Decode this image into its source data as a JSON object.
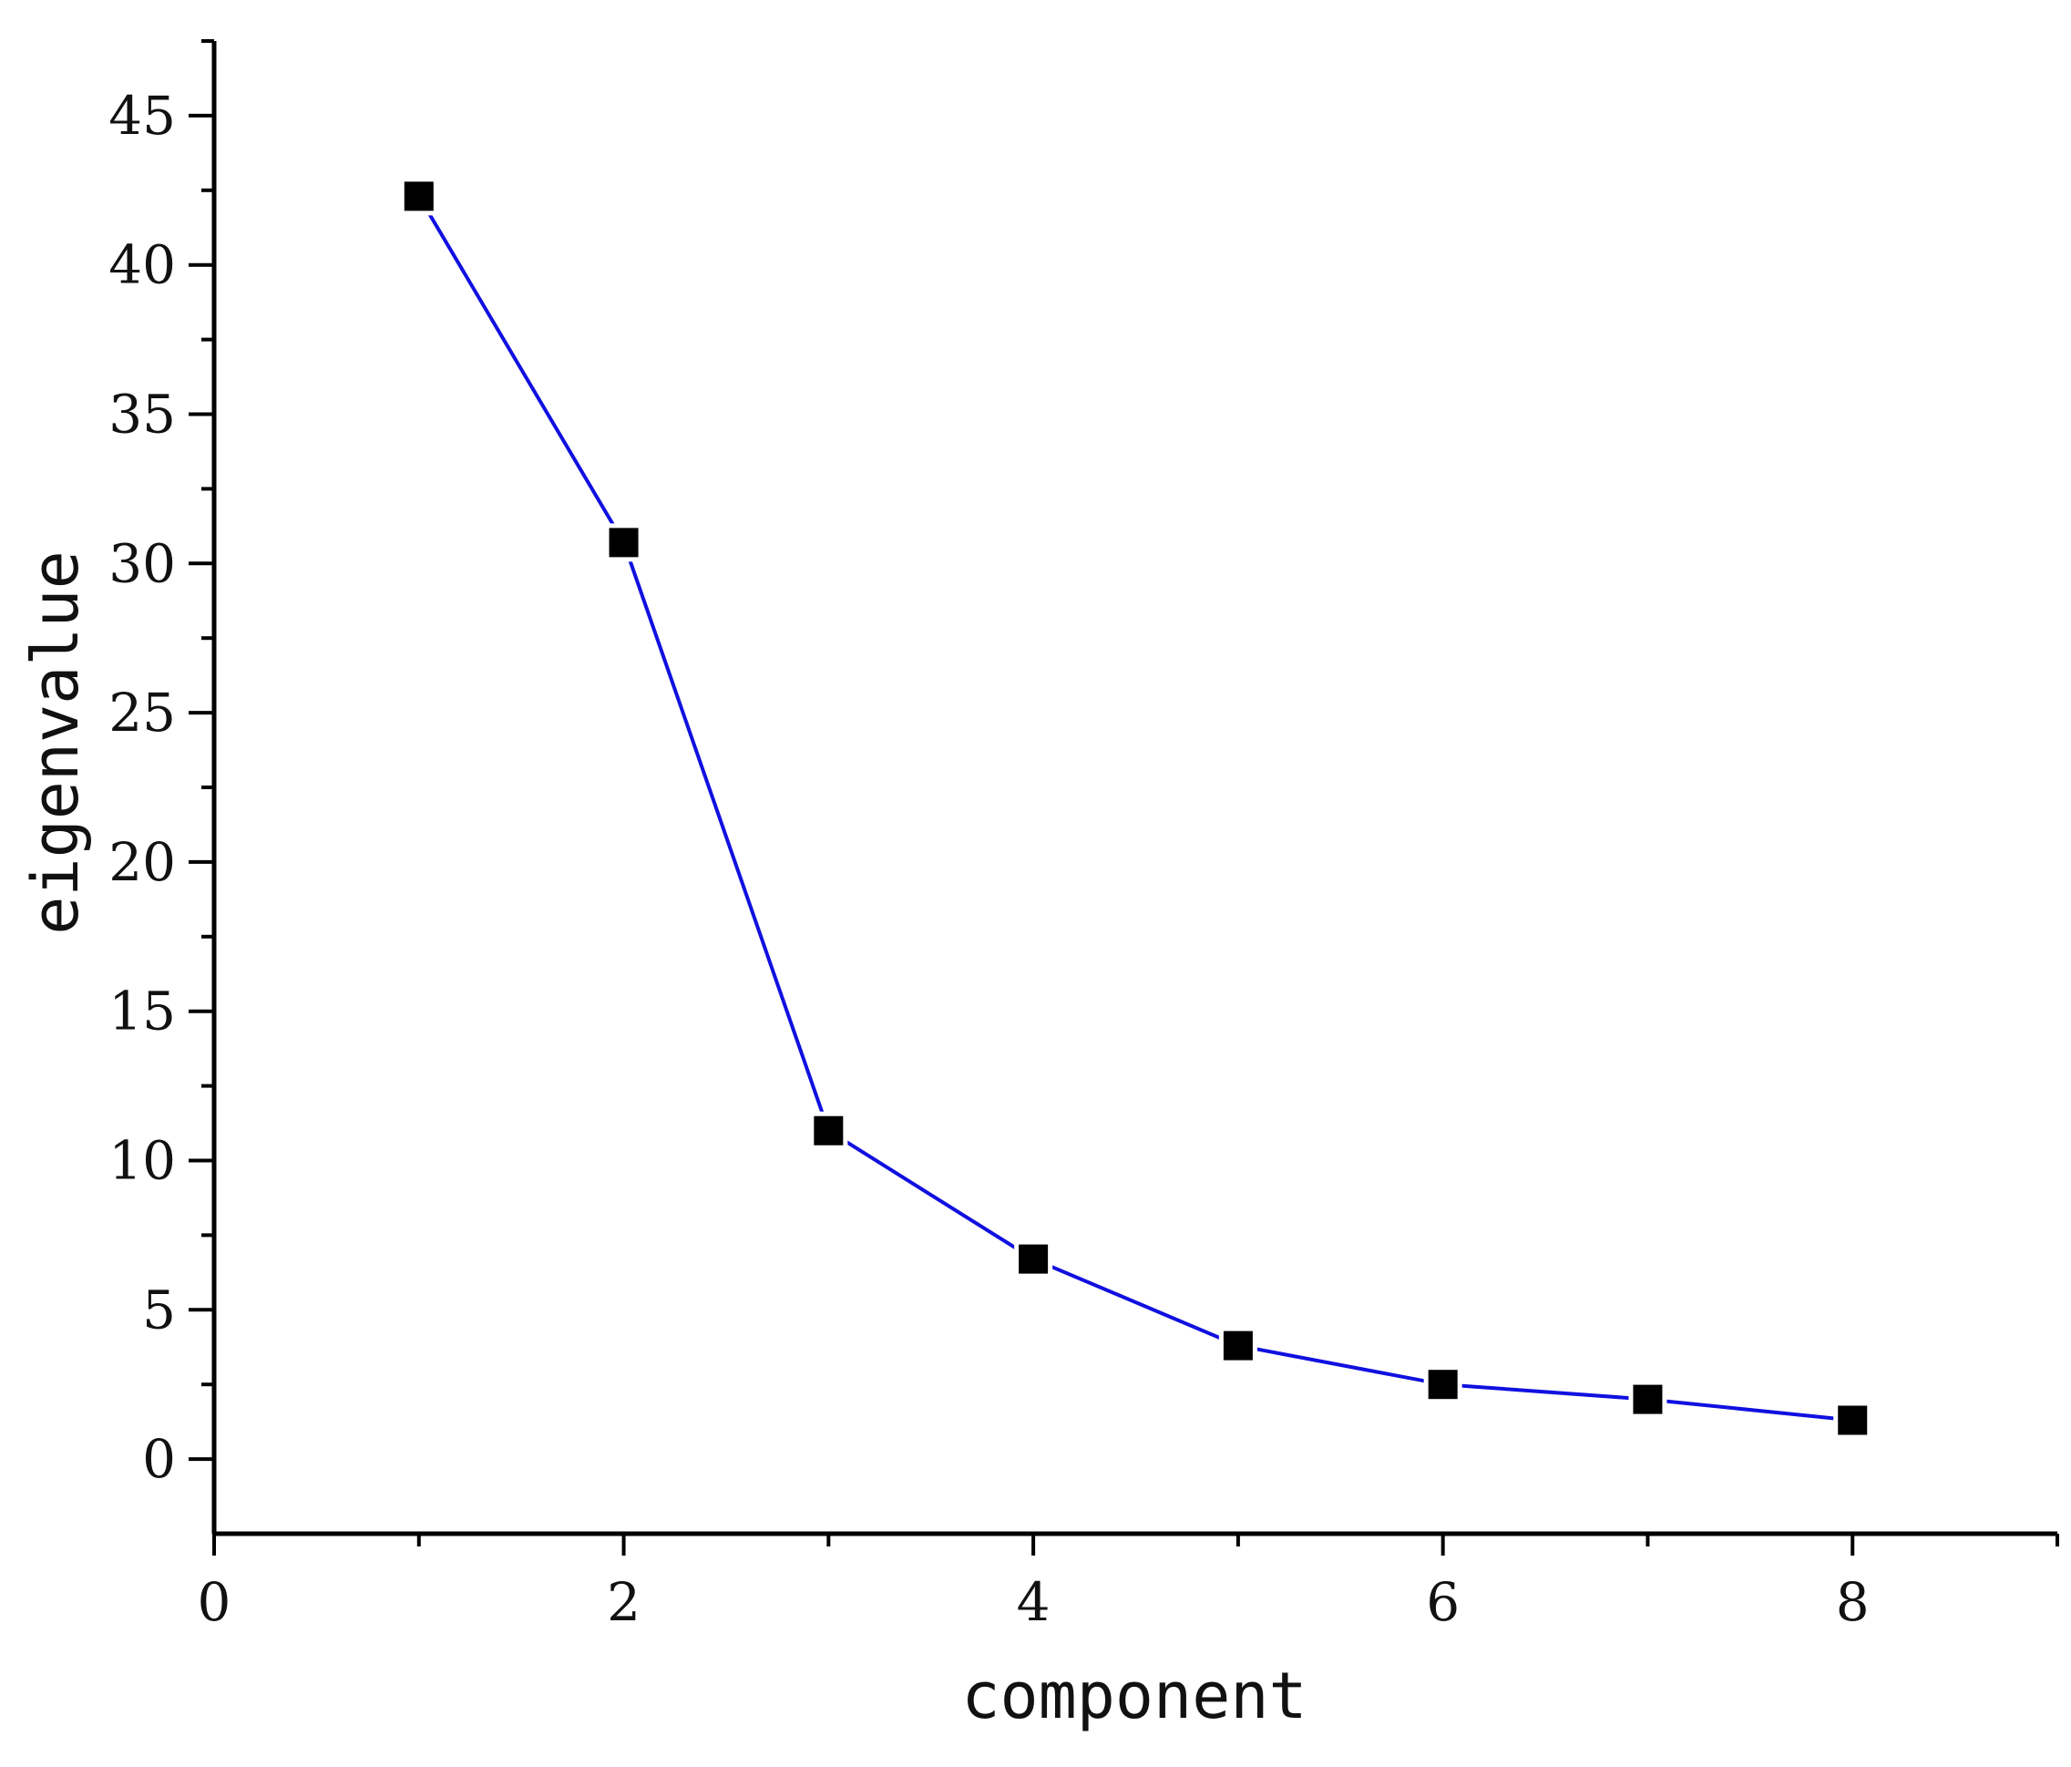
{
  "chart_data": {
    "type": "line",
    "xlabel": "component",
    "ylabel": "eigenvalue",
    "xlim": [
      0,
      9
    ],
    "ylim": [
      -2.5,
      47.5
    ],
    "xticks": [
      0,
      2,
      4,
      6,
      8
    ],
    "yticks": [
      0,
      5,
      10,
      15,
      20,
      25,
      30,
      35,
      40,
      45
    ],
    "grid": false,
    "legend": "none",
    "series": [
      {
        "x": [
          1,
          2,
          3,
          4,
          5,
          6,
          7,
          8
        ],
        "y": [
          42.3,
          30.7,
          11.0,
          6.7,
          3.8,
          2.5,
          2.0,
          1.3
        ],
        "line_color": "#1010e0",
        "marker": "square",
        "marker_color": "#000000"
      }
    ]
  }
}
